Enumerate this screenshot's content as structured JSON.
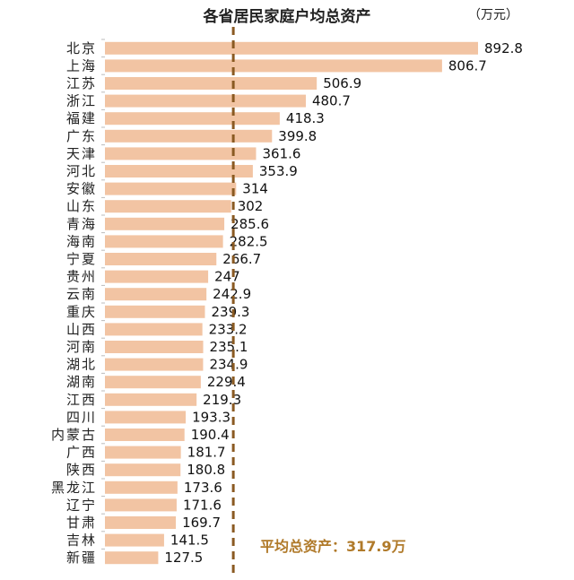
{
  "chart_data": {
    "type": "bar",
    "orientation": "horizontal",
    "title": "各省居民家庭户均总资产",
    "unit": "（万元）",
    "categories": [
      "北京",
      "上海",
      "江苏",
      "浙江",
      "福建",
      "广东",
      "天津",
      "河北",
      "安徽",
      "山东",
      "青海",
      "海南",
      "宁夏",
      "贵州",
      "云南",
      "重庆",
      "山西",
      "河南",
      "湖北",
      "湖南",
      "江西",
      "四川",
      "内蒙古",
      "广西",
      "陕西",
      "黑龙江",
      "辽宁",
      "甘肃",
      "吉林",
      "新疆"
    ],
    "values": [
      892.8,
      806.7,
      506.9,
      480.7,
      418.3,
      399.8,
      361.6,
      353.9,
      314,
      302,
      285.6,
      282.5,
      266.7,
      247,
      242.9,
      239.3,
      233.2,
      235.1,
      234.9,
      229.4,
      219.3,
      193.3,
      190.4,
      181.7,
      180.8,
      173.6,
      171.6,
      169.7,
      141.5,
      127.5
    ],
    "labels": [
      "892.8",
      "806.7",
      "506.9",
      "480.7",
      "418.3",
      "399.8",
      "361.6",
      "353.9",
      "314",
      "302",
      "285.6",
      "282.5",
      "266.7",
      "247",
      "242.9",
      "239.3",
      "233.2",
      "235.1",
      "234.9",
      "229.4",
      "219.3",
      "193.3",
      "190.4",
      "181.7",
      "180.8",
      "173.6",
      "171.6",
      "169.7",
      "141.5",
      "127.5"
    ],
    "xlim": [
      0,
      892.8
    ],
    "average": {
      "value": 317.9,
      "label": "平均总资产：",
      "value_label": "317.9万"
    },
    "colors": {
      "bar": "#f2c4a3",
      "average_line": "#8a5a22",
      "average_text": "#b07a2a"
    }
  }
}
